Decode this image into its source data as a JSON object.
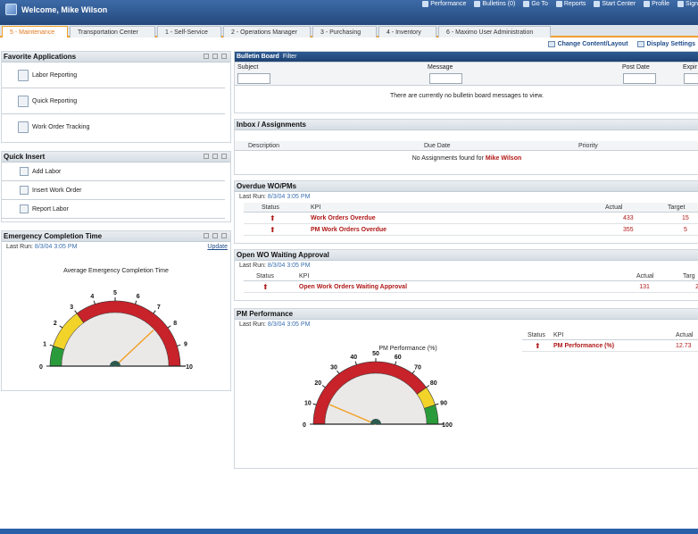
{
  "header": {
    "welcome": "Welcome, Mike Wilson",
    "nav": [
      {
        "label": "Performance",
        "icon": "performance-icon"
      },
      {
        "label": "Bulletins (0)",
        "icon": "bulletin-icon"
      },
      {
        "label": "Go To",
        "icon": "goto-icon"
      },
      {
        "label": "Reports",
        "icon": "reports-icon"
      },
      {
        "label": "Start Center",
        "icon": "home-icon"
      },
      {
        "label": "Profile",
        "icon": "profile-icon"
      },
      {
        "label": "Sign",
        "icon": "signout-icon"
      }
    ]
  },
  "tabs": [
    {
      "label": "5 - Maintenance",
      "active": true
    },
    {
      "label": "Transportation Center"
    },
    {
      "label": "1 - Self-Service"
    },
    {
      "label": "2 - Operations Manager"
    },
    {
      "label": "3 - Purchasing"
    },
    {
      "label": "4 - Inventory"
    },
    {
      "label": "6 - Maximo User Administration"
    }
  ],
  "toolbar": {
    "change": "Change Content/Layout",
    "display": "Display Settings"
  },
  "favorites": {
    "title": "Favorite Applications",
    "items": [
      "Labor Reporting",
      "Quick Reporting",
      "Work Order Tracking"
    ]
  },
  "quick_insert": {
    "title": "Quick Insert",
    "items": [
      "Add Labor",
      "Insert Work Order",
      "Report Labor"
    ]
  },
  "emergency": {
    "title": "Emergency Completion Time",
    "last_run_label": "Last Run:",
    "last_run": "8/3/04 3:05 PM",
    "update": "Update",
    "gauge_title": "Average Emergency Completion Time",
    "ticks": [
      "0",
      "1",
      "2",
      "3",
      "4",
      "5",
      "6",
      "7",
      "8",
      "9",
      "10"
    ],
    "value": 7.6,
    "max": 10
  },
  "bulletin": {
    "title": "Bulletin Board",
    "filter": "Filter",
    "cols": [
      "Subject",
      "Message",
      "Post Date",
      "Expir"
    ],
    "empty": "There are currently no bulletin board messages to view."
  },
  "inbox": {
    "title": "Inbox / Assignments",
    "cols": [
      "Description",
      "Due Date",
      "Priority"
    ],
    "empty_prefix": "No Assignments found for",
    "user": "Mike Wilson"
  },
  "overdue": {
    "title": "Overdue WO/PMs",
    "last_run_label": "Last Run:",
    "last_run": "8/3/04 3:05 PM",
    "cols": [
      "Status",
      "KPI",
      "Actual",
      "Target"
    ],
    "rows": [
      {
        "kpi": "Work Orders Overdue",
        "actual": "433",
        "target": "15"
      },
      {
        "kpi": "PM Work Orders Overdue",
        "actual": "355",
        "target": "5"
      }
    ]
  },
  "waiting": {
    "title": "Open WO Waiting Approval",
    "last_run_label": "Last Run:",
    "last_run": "8/3/04 3:05 PM",
    "cols": [
      "Status",
      "KPI",
      "Actual",
      "Targ"
    ],
    "rows": [
      {
        "kpi": "Open Work Orders Waiting Approval",
        "actual": "131",
        "target": "2"
      }
    ]
  },
  "pm": {
    "title": "PM Performance",
    "last_run_label": "Last Run:",
    "last_run": "8/3/04 3:05 PM",
    "gauge_title": "PM Performance (%)",
    "cols": [
      "Status",
      "KPI",
      "Actual"
    ],
    "rows": [
      {
        "kpi": "PM Performance (%)",
        "actual": "12.73"
      }
    ],
    "ticks": [
      "0",
      "10",
      "20",
      "30",
      "40",
      "50",
      "60",
      "70",
      "80",
      "90",
      "100"
    ],
    "value": 12.73,
    "max": 100
  },
  "colors": {
    "accent": "#f0a030",
    "header": "#24497c",
    "kpi": "#b01818",
    "gauge_red": "#c8222a",
    "gauge_yellow": "#f2d32a",
    "gauge_green": "#2a9b3a"
  }
}
